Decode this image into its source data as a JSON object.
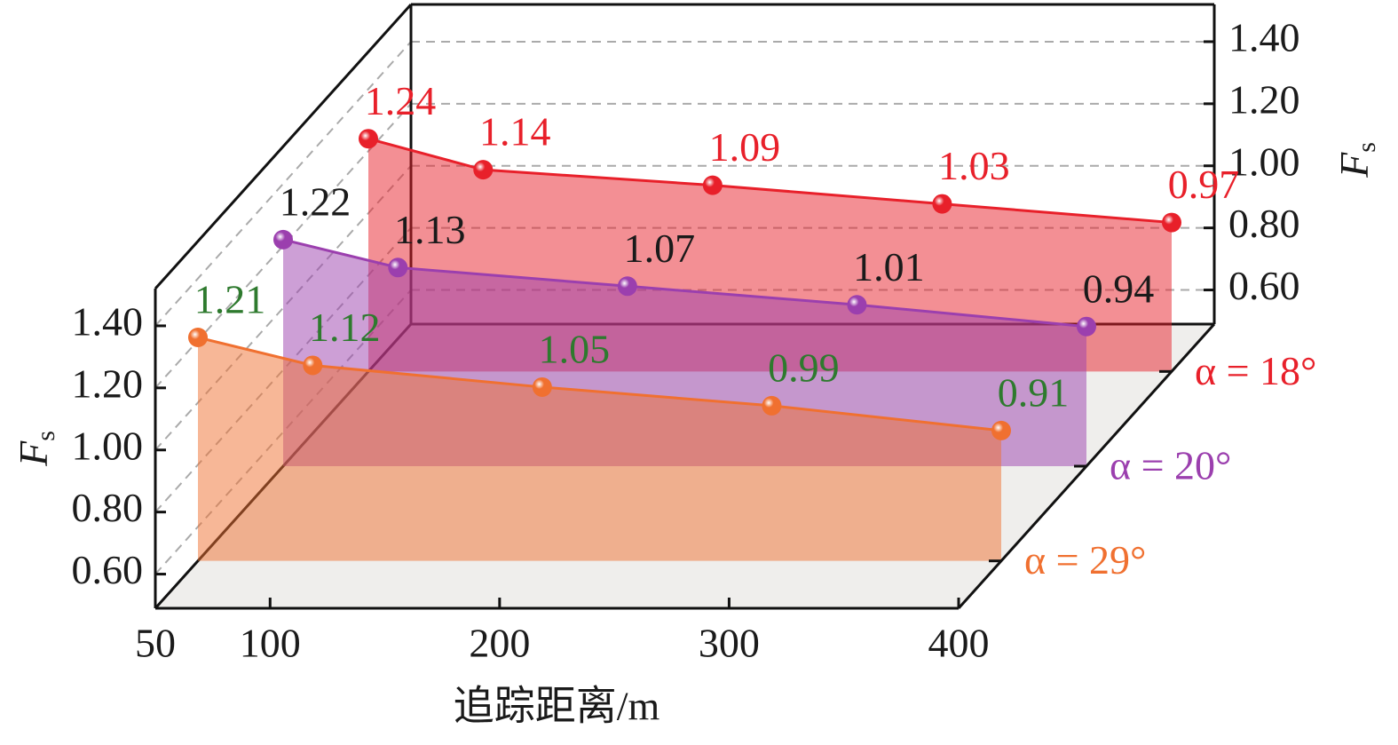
{
  "chart_data": {
    "type": "line3d",
    "x_label": "追踪距离/m",
    "y_label": "F",
    "y_label_sub": "s",
    "x": [
      50,
      100,
      200,
      300,
      400
    ],
    "xlim": [
      50,
      400
    ],
    "xticks": [
      50,
      100,
      200,
      300,
      400
    ],
    "ylim": [
      0.49,
      1.52
    ],
    "yticks": [
      {
        "value": 0.6,
        "label": "0.60"
      },
      {
        "value": 0.8,
        "label": "0.80"
      },
      {
        "value": 1,
        "label": "1.00"
      },
      {
        "value": 1.2,
        "label": "1.20"
      },
      {
        "value": 1.4,
        "label": "1.40"
      }
    ],
    "grid": true,
    "floor_color": "#efeeec",
    "series": [
      {
        "name": "α = 18°",
        "color": "#e8202a",
        "label_color": "#e8202a",
        "values": [
          1.24,
          1.14,
          1.09,
          1.03,
          0.97
        ]
      },
      {
        "name": "α = 20°",
        "color": "#9b3fae",
        "label_color": "#1a1a1a",
        "values": [
          1.22,
          1.13,
          1.07,
          1.01,
          0.94
        ]
      },
      {
        "name": "α = 29°",
        "color": "#f07030",
        "label_color": "#2e7a2e",
        "values": [
          1.21,
          1.12,
          1.05,
          0.99,
          0.91
        ]
      }
    ]
  }
}
